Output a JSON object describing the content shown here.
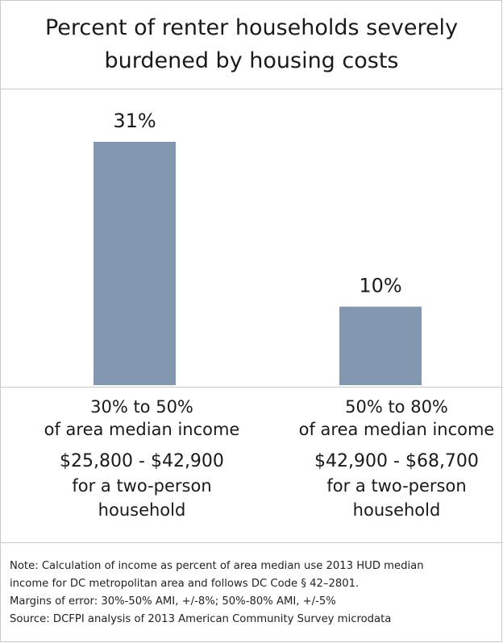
{
  "chart_data": {
    "type": "bar",
    "title": "Percent of renter households severely burdened by housing costs",
    "categories": [
      {
        "range_line1": "30% to 50%",
        "range_line2": "of area median income",
        "income_line1": "$25,800 - $42,900",
        "income_line2": "for a two-person",
        "income_line3": "household"
      },
      {
        "range_line1": "50% to 80%",
        "range_line2": "of area median income",
        "income_line1": "$42,900 - $68,700",
        "income_line2": "for a two-person",
        "income_line3": "household"
      }
    ],
    "values": [
      31,
      10
    ],
    "data_labels": [
      "31%",
      "10%"
    ],
    "ylim": [
      0,
      35
    ],
    "grid": false,
    "bar_color": "#8497b0"
  },
  "notes": [
    "Note: Calculation of income as percent of area median use 2013 HUD median",
    "income for DC metropolitan area and follows DC Code § 42–2801.",
    "Margins of error: 30%-50% AMI, +/-8%; 50%-80% AMI, +/-5%",
    "Source: DCFPI analysis of 2013 American Community Survey microdata"
  ]
}
